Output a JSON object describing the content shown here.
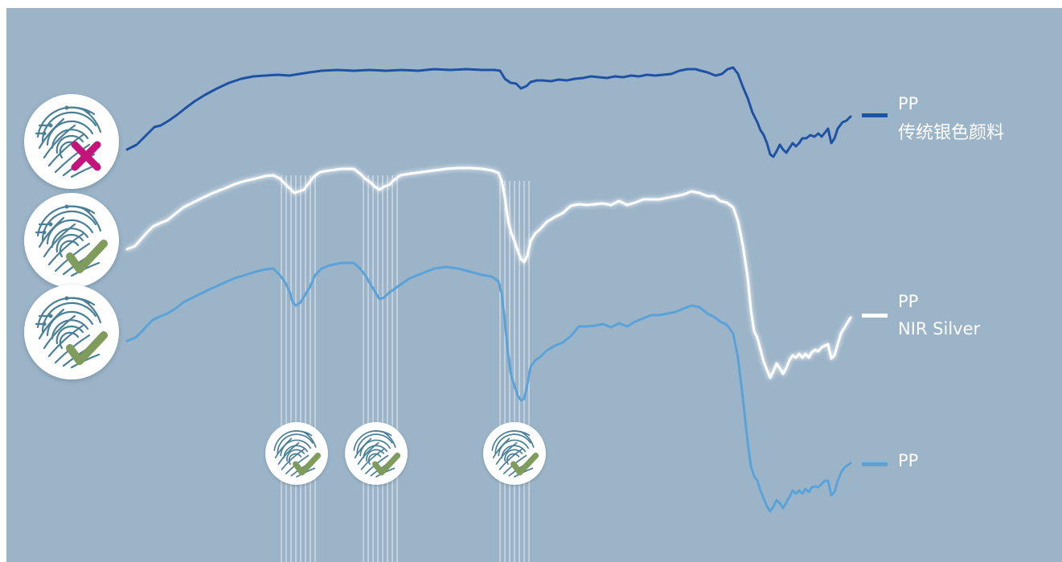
{
  "legend": [
    {
      "line1": "PP",
      "line2": "传统银色颜料",
      "color": "#1f52a4"
    },
    {
      "line1": "PP",
      "line2": "NIR Silver",
      "color": "#ffffff"
    },
    {
      "line1": "PP",
      "line2": "",
      "color": "#5aa2d8"
    }
  ],
  "colors": {
    "background": "#9cb4c8",
    "reject": "#c4137a",
    "accept": "#7f9c5c",
    "fingerprint": "#4a7f98"
  },
  "icons": {
    "left": [
      "fingerprint-reject",
      "fingerprint-accept",
      "fingerprint-accept"
    ],
    "bottom": [
      "fingerprint-accept",
      "fingerprint-accept",
      "fingerprint-accept"
    ]
  }
}
